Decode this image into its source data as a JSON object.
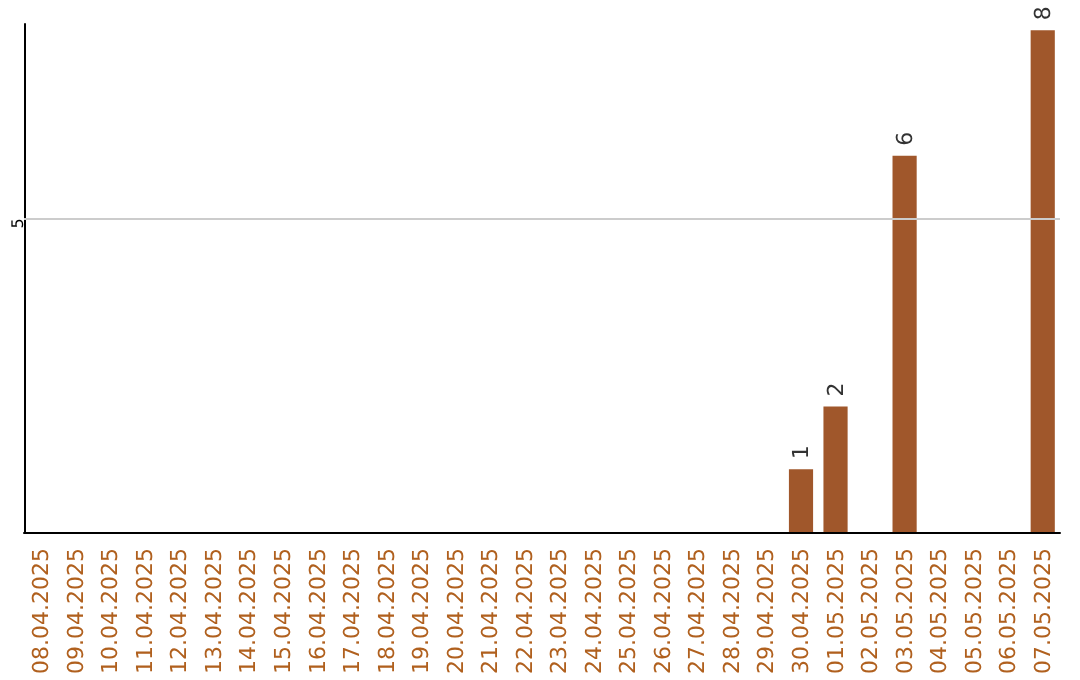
{
  "chart_data": {
    "type": "bar",
    "categories": [
      "08.04.2025",
      "09.04.2025",
      "10.04.2025",
      "11.04.2025",
      "12.04.2025",
      "13.04.2025",
      "14.04.2025",
      "15.04.2025",
      "16.04.2025",
      "17.04.2025",
      "18.04.2025",
      "19.04.2025",
      "20.04.2025",
      "21.04.2025",
      "22.04.2025",
      "23.04.2025",
      "24.04.2025",
      "25.04.2025",
      "26.04.2025",
      "27.04.2025",
      "28.04.2025",
      "29.04.2025",
      "30.04.2025",
      "01.05.2025",
      "02.05.2025",
      "03.05.2025",
      "04.05.2025",
      "05.05.2025",
      "06.05.2025",
      "07.05.2025"
    ],
    "values": [
      null,
      null,
      null,
      null,
      null,
      null,
      null,
      null,
      null,
      null,
      null,
      null,
      null,
      null,
      null,
      null,
      null,
      null,
      null,
      null,
      null,
      null,
      1,
      2,
      null,
      6,
      null,
      null,
      null,
      8
    ],
    "data_labels": true,
    "color": "#a0572b",
    "ylim": [
      0,
      8.1
    ],
    "ref_lines": [
      {
        "axis": "y",
        "value": 5,
        "label": "5",
        "color": "#cccccc",
        "line_style": "solid"
      }
    ]
  }
}
